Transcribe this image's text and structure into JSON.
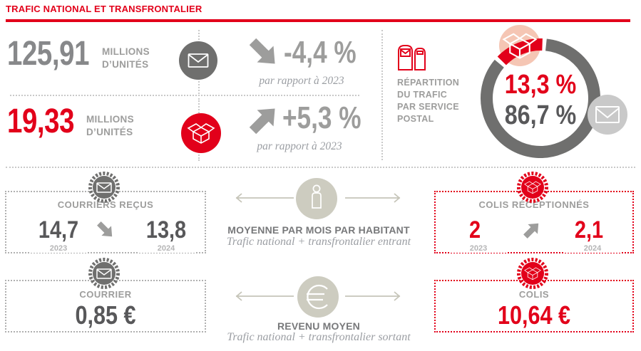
{
  "colors": {
    "accent_red": "#e2001a",
    "ring_gray": "#6f6f6e",
    "number_gray": "#87888a",
    "dark_gray_text": "#58585a",
    "label_gray": "#9d9d9c",
    "dotted_gray": "#c9c9c9",
    "beige_circle": "#cdccc0",
    "pink_badge": "#f5c6b4",
    "gray_badge": "#c9c9c9"
  },
  "header": {
    "title": "TRAFIC NATIONAL ET TRANSFRONTALIER"
  },
  "traffic_rows": [
    {
      "value": "125,91",
      "unit_line1": "MILLIONS",
      "unit_line2": "D’UNITÉS",
      "icon": "envelope-circle",
      "trend": "down",
      "change": "-4,4 %",
      "change_note": "par rapport à 2023"
    },
    {
      "value": "19,33",
      "unit_line1": "MILLIONS",
      "unit_line2": "D’UNITÉS",
      "icon": "parcel-circle",
      "trend": "up",
      "change": "+5,3 %",
      "change_note": "par rapport à 2023"
    }
  ],
  "repartition": {
    "title_lines": [
      "RÉPARTITION",
      "DU TRAFIC",
      "PAR SERVICE",
      "POSTAL"
    ],
    "parcel_pct": "13,3 %",
    "mail_pct": "86,7 %"
  },
  "chart_data": {
    "type": "pie",
    "title": "RÉPARTITION DU TRAFIC PAR SERVICE POSTAL",
    "categories": [
      "Colis",
      "Courrier"
    ],
    "values": [
      13.3,
      86.7
    ],
    "labels": [
      "13,3 %",
      "86,7 %"
    ],
    "colors": [
      "#e2001a",
      "#6f6f6e"
    ],
    "hole": 0.8,
    "legend": "icon badges: parcel (pink, top-left), envelope (gray, right)"
  },
  "per_inhabitant": {
    "courriers": {
      "label": "COURRIERS REÇUS",
      "value_2023": "14,7",
      "year_left": "2023",
      "value_2024": "13,8",
      "year_right": "2024",
      "trend": "down"
    },
    "center": {
      "title": "MOYENNE PAR MOIS PAR HABITANT",
      "subtitle": "Trafic national + transfrontalier entrant"
    },
    "colis": {
      "label": "COLIS RÉCEPTIONNÉS",
      "value_2023": "2",
      "year_left": "2023",
      "value_2024": "2,1",
      "year_right": "2024",
      "trend": "up"
    }
  },
  "revenue": {
    "courrier": {
      "label": "COURRIER",
      "value": "0,85 €"
    },
    "center": {
      "title": "REVENU MOYEN",
      "subtitle": "Trafic national + transfrontalier sortant"
    },
    "colis": {
      "label": "COLIS",
      "value": "10,64 €"
    }
  }
}
